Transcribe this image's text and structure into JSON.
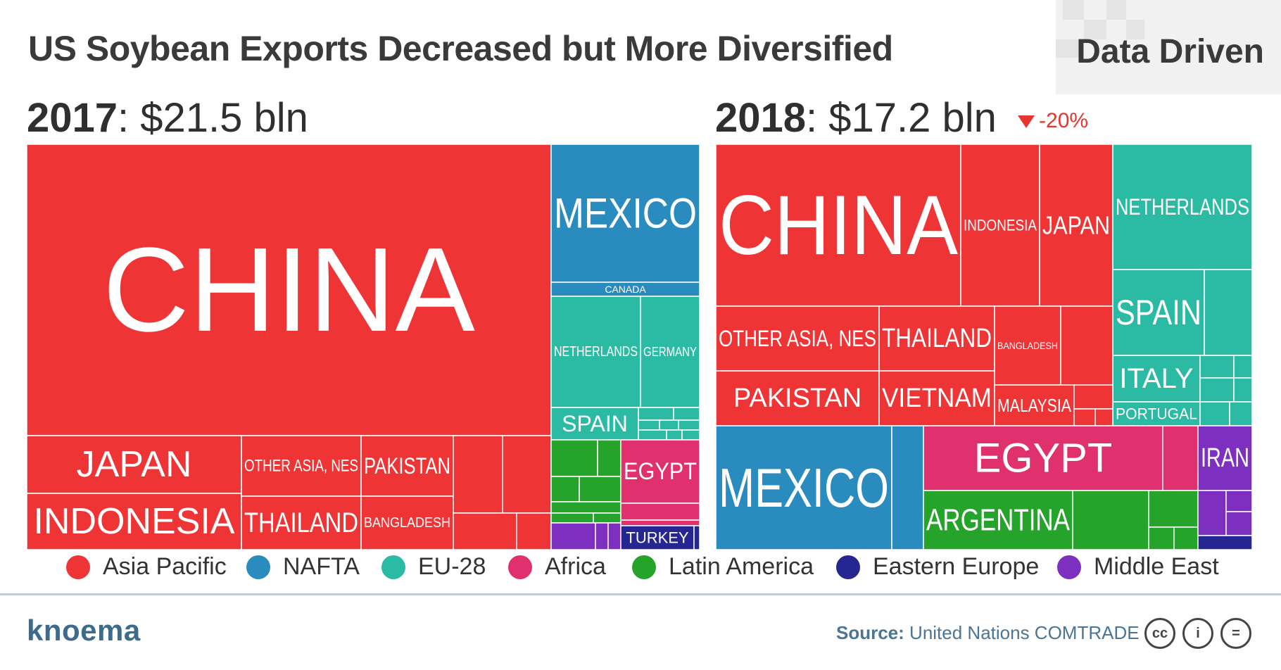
{
  "title": "US Soybean Exports Decreased but More Diversified",
  "badge": "Data Driven",
  "colors": {
    "Asia Pacific": "#ef3436",
    "NAFTA": "#2a8bbf",
    "EU-28": "#2bbaa3",
    "Africa": "#e0306e",
    "Latin America": "#25a32b",
    "Eastern Europe": "#262693",
    "Middle East": "#7d2fbf"
  },
  "legend": [
    "Asia Pacific",
    "NAFTA",
    "EU-28",
    "Africa",
    "Latin America",
    "Eastern Europe",
    "Middle East"
  ],
  "source_label": "Source:",
  "source_text": "United Nations COMTRADE",
  "logo": "knoema",
  "chart_data": [
    {
      "type": "treemap",
      "year": "2017",
      "total": ": $21.5 bln",
      "labeled_tiles": [
        {
          "label": "CHINA",
          "region": "Asia Pacific"
        },
        {
          "label": "MEXICO",
          "region": "NAFTA"
        },
        {
          "label": "CANADA",
          "region": "NAFTA"
        },
        {
          "label": "NETHERLANDS",
          "region": "EU-28"
        },
        {
          "label": "GERMANY",
          "region": "EU-28"
        },
        {
          "label": "SPAIN",
          "region": "EU-28"
        },
        {
          "label": "JAPAN",
          "region": "Asia Pacific"
        },
        {
          "label": "INDONESIA",
          "region": "Asia Pacific"
        },
        {
          "label": "OTHER ASIA, NES",
          "region": "Asia Pacific"
        },
        {
          "label": "THAILAND",
          "region": "Asia Pacific"
        },
        {
          "label": "PAKISTAN",
          "region": "Asia Pacific"
        },
        {
          "label": "BANGLADESH",
          "region": "Asia Pacific"
        },
        {
          "label": "EGYPT",
          "region": "Africa"
        },
        {
          "label": "TURKEY",
          "region": "Eastern Europe"
        }
      ]
    },
    {
      "type": "treemap",
      "year": "2018",
      "total": ": $17.2 bln",
      "change": "-20%",
      "labeled_tiles": [
        {
          "label": "CHINA",
          "region": "Asia Pacific"
        },
        {
          "label": "INDONESIA",
          "region": "Asia Pacific"
        },
        {
          "label": "JAPAN",
          "region": "Asia Pacific"
        },
        {
          "label": "NETHERLANDS",
          "region": "EU-28"
        },
        {
          "label": "SPAIN",
          "region": "EU-28"
        },
        {
          "label": "ITALY",
          "region": "EU-28"
        },
        {
          "label": "PORTUGAL",
          "region": "EU-28"
        },
        {
          "label": "OTHER ASIA, NES",
          "region": "Asia Pacific"
        },
        {
          "label": "THAILAND",
          "region": "Asia Pacific"
        },
        {
          "label": "BANGLADESH",
          "region": "Asia Pacific"
        },
        {
          "label": "PAKISTAN",
          "region": "Asia Pacific"
        },
        {
          "label": "VIETNAM",
          "region": "Asia Pacific"
        },
        {
          "label": "MALAYSIA",
          "region": "Asia Pacific"
        },
        {
          "label": "MEXICO",
          "region": "NAFTA"
        },
        {
          "label": "EGYPT",
          "region": "Africa"
        },
        {
          "label": "IRAN",
          "region": "Middle East"
        },
        {
          "label": "ARGENTINA",
          "region": "Latin America"
        }
      ]
    }
  ]
}
